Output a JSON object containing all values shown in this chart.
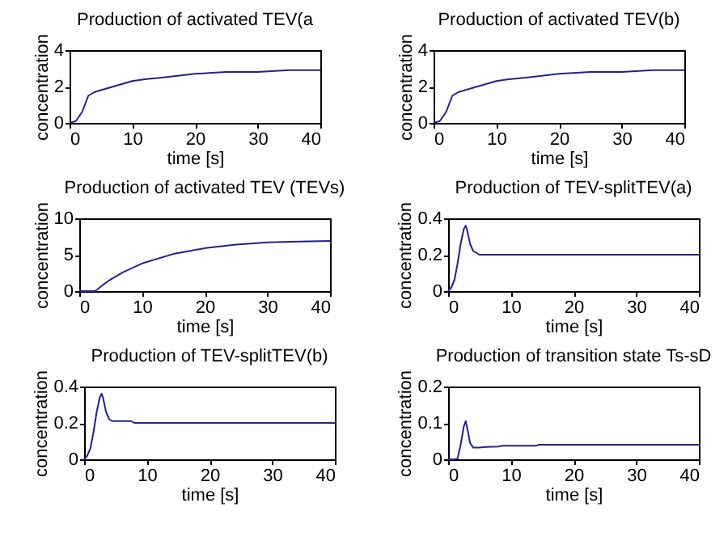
{
  "chart_data": [
    {
      "type": "line",
      "title": "Production of activated TEV(a",
      "xlabel": "time [s]",
      "ylabel": "concentration",
      "xlim": [
        0,
        40
      ],
      "ylim": [
        0,
        4
      ],
      "xticks": [
        0,
        10,
        20,
        30,
        40
      ],
      "yticks": [
        0,
        2,
        4
      ],
      "series": [
        {
          "color": "#22228f",
          "x": [
            0,
            1,
            2,
            3,
            3.5,
            4,
            6,
            8,
            10,
            12,
            15,
            20,
            25,
            30,
            35,
            40
          ],
          "values": [
            0,
            0.1,
            0.6,
            1.5,
            1.6,
            1.7,
            1.9,
            2.1,
            2.3,
            2.4,
            2.5,
            2.7,
            2.8,
            2.8,
            2.9,
            2.9
          ]
        }
      ]
    },
    {
      "type": "line",
      "title": "Production of activated TEV(b)",
      "xlabel": "time [s]",
      "ylabel": "concentration",
      "xlim": [
        0,
        40
      ],
      "ylim": [
        0,
        4
      ],
      "xticks": [
        0,
        10,
        20,
        30,
        40
      ],
      "yticks": [
        0,
        2,
        4
      ],
      "series": [
        {
          "color": "#22228f",
          "x": [
            0,
            1,
            2,
            3,
            3.5,
            4,
            6,
            8,
            10,
            12,
            15,
            20,
            25,
            30,
            35,
            40
          ],
          "values": [
            0,
            0.1,
            0.6,
            1.5,
            1.6,
            1.7,
            1.9,
            2.1,
            2.3,
            2.4,
            2.5,
            2.7,
            2.8,
            2.8,
            2.9,
            2.9
          ]
        }
      ]
    },
    {
      "type": "line",
      "title": "Production of activated TEV (TEVs)",
      "xlabel": "time [s]",
      "ylabel": "concentration",
      "xlim": [
        0,
        40
      ],
      "ylim": [
        0,
        10
      ],
      "xticks": [
        0,
        10,
        20,
        30,
        40
      ],
      "yticks": [
        0,
        5,
        10
      ],
      "series": [
        {
          "color": "#22228f",
          "x": [
            0,
            2,
            2.5,
            3,
            4,
            5,
            7,
            10,
            15,
            20,
            25,
            30,
            35,
            40
          ],
          "values": [
            0,
            0,
            0,
            0.3,
            1,
            1.6,
            2.6,
            3.8,
            5.1,
            5.9,
            6.4,
            6.7,
            6.8,
            6.9
          ]
        }
      ]
    },
    {
      "type": "line",
      "title": "Production of TEV-splitTEV(a)",
      "xlabel": "time [s]",
      "ylabel": "concentration",
      "xlim": [
        0,
        40
      ],
      "ylim": [
        0,
        0.4
      ],
      "xticks": [
        0,
        10,
        20,
        30,
        40
      ],
      "yticks": [
        0,
        0.2,
        0.4
      ],
      "series": [
        {
          "color": "#22228f",
          "x": [
            0,
            0.5,
            1,
            1.5,
            2,
            2.5,
            2.8,
            3,
            3.5,
            4,
            4.5,
            5,
            10,
            20,
            30,
            40
          ],
          "values": [
            0,
            0.02,
            0.06,
            0.15,
            0.26,
            0.34,
            0.36,
            0.34,
            0.26,
            0.22,
            0.21,
            0.2,
            0.2,
            0.2,
            0.2,
            0.2
          ]
        }
      ]
    },
    {
      "type": "line",
      "title": "Production of TEV-splitTEV(b)",
      "xlabel": "time [s]",
      "ylabel": "concentration",
      "xlim": [
        0,
        40
      ],
      "ylim": [
        0,
        0.4
      ],
      "xticks": [
        0,
        10,
        20,
        30,
        40
      ],
      "yticks": [
        0,
        0.2,
        0.4
      ],
      "series": [
        {
          "color": "#22228f",
          "x": [
            0,
            0.5,
            1,
            1.5,
            2,
            2.5,
            2.8,
            3,
            3.5,
            4,
            4.5,
            5,
            7.5,
            8,
            10,
            20,
            30,
            40
          ],
          "values": [
            0,
            0.02,
            0.06,
            0.15,
            0.26,
            0.34,
            0.36,
            0.34,
            0.26,
            0.22,
            0.21,
            0.21,
            0.21,
            0.2,
            0.2,
            0.2,
            0.2,
            0.2
          ]
        }
      ]
    },
    {
      "type": "line",
      "title": "Production of transition state Ts-sD",
      "xlabel": "time [s]",
      "ylabel": "concentration",
      "xlim": [
        0,
        40
      ],
      "ylim": [
        0,
        0.2
      ],
      "xticks": [
        0,
        10,
        20,
        30,
        40
      ],
      "yticks": [
        0,
        0.1,
        0.2
      ],
      "series": [
        {
          "color": "#22228f",
          "x": [
            0,
            1,
            1.5,
            2,
            2.5,
            2.8,
            3,
            3.5,
            4,
            5,
            6,
            8,
            8.5,
            14,
            14.5,
            20,
            30,
            40
          ],
          "values": [
            0,
            0,
            0.002,
            0.04,
            0.09,
            0.105,
            0.09,
            0.045,
            0.032,
            0.032,
            0.034,
            0.035,
            0.037,
            0.037,
            0.04,
            0.04,
            0.04,
            0.04
          ]
        }
      ]
    }
  ]
}
